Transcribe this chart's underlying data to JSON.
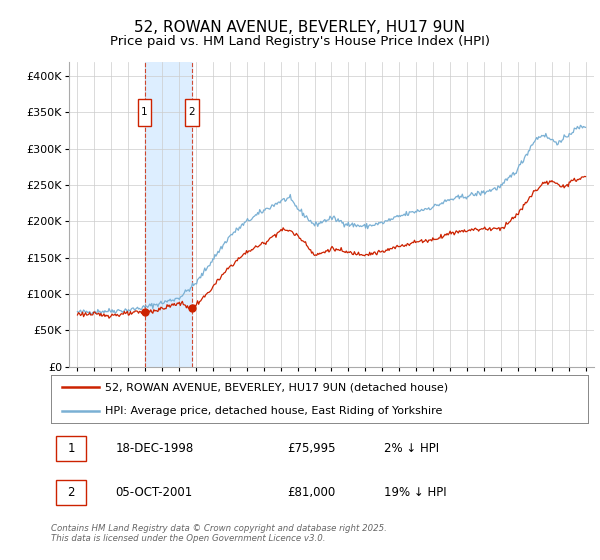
{
  "title": "52, ROWAN AVENUE, BEVERLEY, HU17 9UN",
  "subtitle": "Price paid vs. HM Land Registry's House Price Index (HPI)",
  "ylabel_ticks": [
    "£0",
    "£50K",
    "£100K",
    "£150K",
    "£200K",
    "£250K",
    "£300K",
    "£350K",
    "£400K"
  ],
  "ytick_values": [
    0,
    50000,
    100000,
    150000,
    200000,
    250000,
    300000,
    350000,
    400000
  ],
  "ylim": [
    0,
    420000
  ],
  "xlim_start": 1994.5,
  "xlim_end": 2025.5,
  "legend_line1": "52, ROWAN AVENUE, BEVERLEY, HU17 9UN (detached house)",
  "legend_line2": "HPI: Average price, detached house, East Riding of Yorkshire",
  "annotation1_date": "18-DEC-1998",
  "annotation1_price": "£75,995",
  "annotation1_detail": "2% ↓ HPI",
  "annotation2_date": "05-OCT-2001",
  "annotation2_price": "£81,000",
  "annotation2_detail": "19% ↓ HPI",
  "footer": "Contains HM Land Registry data © Crown copyright and database right 2025.\nThis data is licensed under the Open Government Licence v3.0.",
  "sale1_x": 1998.96,
  "sale1_y": 75995,
  "sale2_x": 2001.75,
  "sale2_y": 81000,
  "shade_x1": 1998.96,
  "shade_x2": 2001.75,
  "hpi_color": "#7ab0d4",
  "price_color": "#cc2200",
  "shade_color": "#ddeeff",
  "grid_color": "#cccccc",
  "background_color": "#ffffff",
  "title_fontsize": 11,
  "subtitle_fontsize": 9.5,
  "hpi_anchors_x": [
    1995.0,
    1996.0,
    1997.0,
    1998.0,
    1999.0,
    2000.0,
    2001.0,
    2002.0,
    2003.0,
    2004.0,
    2005.0,
    2006.0,
    2007.0,
    2007.5,
    2008.0,
    2009.0,
    2010.0,
    2011.0,
    2012.0,
    2013.0,
    2014.0,
    2015.0,
    2016.0,
    2017.0,
    2018.0,
    2019.0,
    2020.0,
    2021.0,
    2022.0,
    2022.5,
    2023.0,
    2023.5,
    2024.0,
    2024.5,
    2025.0
  ],
  "hpi_anchors_y": [
    75000,
    76000,
    77000,
    78000,
    82000,
    88000,
    95000,
    115000,
    148000,
    180000,
    200000,
    215000,
    228000,
    232000,
    218000,
    195000,
    205000,
    196000,
    193000,
    198000,
    207000,
    214000,
    220000,
    230000,
    235000,
    240000,
    248000,
    272000,
    312000,
    320000,
    312000,
    308000,
    320000,
    328000,
    332000
  ],
  "price_anchors_x": [
    1995.0,
    1996.0,
    1997.0,
    1998.0,
    1998.96,
    1999.5,
    2000.0,
    2001.0,
    2001.75,
    2002.5,
    2003.0,
    2004.0,
    2005.0,
    2006.0,
    2007.0,
    2007.5,
    2008.0,
    2008.5,
    2009.0,
    2009.5,
    2010.0,
    2011.0,
    2012.0,
    2013.0,
    2014.0,
    2015.0,
    2016.0,
    2017.0,
    2018.0,
    2019.0,
    2020.0,
    2021.0,
    2022.0,
    2022.5,
    2023.0,
    2023.5,
    2024.0,
    2024.5,
    2025.0
  ],
  "price_anchors_y": [
    73000,
    72000,
    71000,
    73000,
    75995,
    77000,
    80000,
    88000,
    81000,
    96000,
    110000,
    138000,
    158000,
    170000,
    188000,
    188000,
    180000,
    170000,
    153000,
    157000,
    163000,
    157000,
    155000,
    158000,
    166000,
    172000,
    175000,
    184000,
    188000,
    190000,
    190000,
    210000,
    242000,
    252000,
    255000,
    248000,
    252000,
    258000,
    262000
  ]
}
